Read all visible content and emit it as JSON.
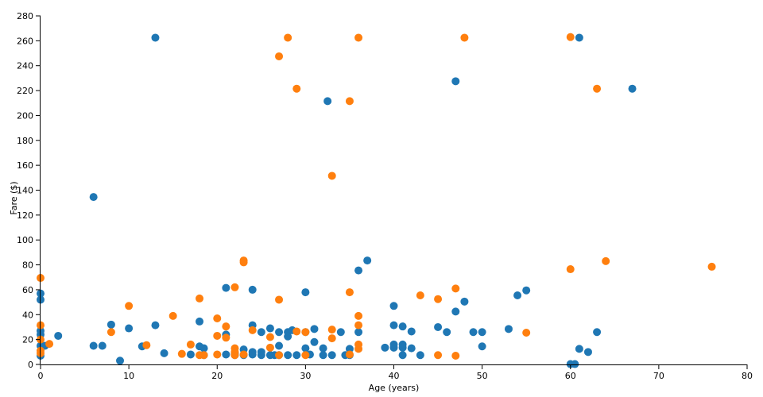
{
  "chart_data": {
    "type": "scatter",
    "title": "",
    "xlabel": "Age (years)",
    "ylabel": "Fare ($)",
    "xlim": [
      0,
      80
    ],
    "ylim": [
      0,
      280
    ],
    "x_ticks": [
      0,
      10,
      20,
      30,
      40,
      50,
      60,
      70,
      80
    ],
    "y_ticks": [
      0,
      20,
      40,
      60,
      80,
      100,
      120,
      140,
      160,
      180,
      200,
      220,
      240,
      260,
      280
    ],
    "grid": false,
    "legend": "none",
    "series": [
      {
        "color": "#1f77b4",
        "points": [
          [
            0,
            7
          ],
          [
            0,
            15
          ],
          [
            0,
            24
          ],
          [
            0,
            27
          ],
          [
            0,
            52
          ],
          [
            0,
            57
          ],
          [
            0.5,
            15
          ],
          [
            2,
            23
          ],
          [
            6,
            15
          ],
          [
            6,
            134.5
          ],
          [
            7,
            15
          ],
          [
            8,
            32
          ],
          [
            9,
            3
          ],
          [
            10,
            29
          ],
          [
            11.5,
            14.5
          ],
          [
            13,
            31.5
          ],
          [
            13,
            262.5
          ],
          [
            14,
            9
          ],
          [
            17,
            8
          ],
          [
            18,
            14.5
          ],
          [
            18,
            34.5
          ],
          [
            18.5,
            13
          ],
          [
            18.5,
            7.5
          ],
          [
            21,
            24
          ],
          [
            21,
            61.5
          ],
          [
            21,
            8
          ],
          [
            22,
            9
          ],
          [
            22,
            7.5
          ],
          [
            23,
            12
          ],
          [
            23,
            7.5
          ],
          [
            24,
            10
          ],
          [
            24,
            8
          ],
          [
            24,
            31.5
          ],
          [
            24,
            60
          ],
          [
            25,
            26
          ],
          [
            25,
            10
          ],
          [
            25,
            7.5
          ],
          [
            26,
            29
          ],
          [
            26,
            7.5
          ],
          [
            26.5,
            7.5
          ],
          [
            27,
            15
          ],
          [
            27,
            26
          ],
          [
            27,
            7.5
          ],
          [
            28,
            26
          ],
          [
            28,
            7.5
          ],
          [
            28,
            22.5
          ],
          [
            28.5,
            27.5
          ],
          [
            29,
            7.5
          ],
          [
            30,
            13
          ],
          [
            30,
            26
          ],
          [
            30,
            58
          ],
          [
            30.5,
            8
          ],
          [
            31,
            18
          ],
          [
            31,
            28.5
          ],
          [
            32,
            13
          ],
          [
            32,
            7.5
          ],
          [
            32.5,
            211.5
          ],
          [
            33,
            7.5
          ],
          [
            34,
            26
          ],
          [
            34.5,
            7.5
          ],
          [
            35,
            12.5
          ],
          [
            35,
            7.5
          ],
          [
            36,
            26
          ],
          [
            36,
            75.5
          ],
          [
            37,
            83.5
          ],
          [
            39,
            13.5
          ],
          [
            40,
            13.5
          ],
          [
            40,
            16
          ],
          [
            40,
            31.5
          ],
          [
            40,
            47
          ],
          [
            41,
            30.5
          ],
          [
            41,
            13.5
          ],
          [
            41,
            16
          ],
          [
            41,
            7.5
          ],
          [
            42,
            13
          ],
          [
            42,
            26.5
          ],
          [
            43,
            7.5
          ],
          [
            45,
            30
          ],
          [
            46,
            26
          ],
          [
            47,
            42.5
          ],
          [
            47,
            227.5
          ],
          [
            48,
            50.5
          ],
          [
            49,
            26
          ],
          [
            50,
            14.5
          ],
          [
            50,
            26
          ],
          [
            53,
            28.5
          ],
          [
            54,
            55.5
          ],
          [
            55,
            59.5
          ],
          [
            60,
            0.3
          ],
          [
            60.5,
            0.3
          ],
          [
            61,
            12.5
          ],
          [
            61,
            262.5
          ],
          [
            62,
            10
          ],
          [
            63,
            26
          ],
          [
            67,
            221.5
          ]
        ]
      },
      {
        "color": "#ff7f0e",
        "points": [
          [
            0,
            9
          ],
          [
            0,
            11
          ],
          [
            0,
            20
          ],
          [
            0,
            31.5
          ],
          [
            0,
            69.5
          ],
          [
            1,
            16.5
          ],
          [
            8,
            26
          ],
          [
            10,
            47
          ],
          [
            12,
            15.5
          ],
          [
            15,
            39
          ],
          [
            16,
            8.5
          ],
          [
            17,
            16
          ],
          [
            18,
            7.5
          ],
          [
            18,
            53
          ],
          [
            18.5,
            7.5
          ],
          [
            20,
            8
          ],
          [
            20,
            23
          ],
          [
            20,
            37
          ],
          [
            21,
            21.5
          ],
          [
            21,
            30.5
          ],
          [
            22,
            10
          ],
          [
            22,
            7.5
          ],
          [
            22,
            13
          ],
          [
            22,
            62
          ],
          [
            23,
            8
          ],
          [
            23,
            82
          ],
          [
            23,
            83.5
          ],
          [
            24,
            27.5
          ],
          [
            26,
            13.5
          ],
          [
            26,
            22
          ],
          [
            27,
            7.5
          ],
          [
            27,
            52
          ],
          [
            27,
            247.5
          ],
          [
            28,
            262.5
          ],
          [
            29,
            26.5
          ],
          [
            29,
            221.5
          ],
          [
            30,
            7.5
          ],
          [
            30,
            26
          ],
          [
            33,
            21
          ],
          [
            33,
            28
          ],
          [
            33,
            151.5
          ],
          [
            35,
            8
          ],
          [
            35,
            58
          ],
          [
            35,
            211.5
          ],
          [
            36,
            12.5
          ],
          [
            36,
            16
          ],
          [
            36,
            31.5
          ],
          [
            36,
            39
          ],
          [
            36,
            262.5
          ],
          [
            43,
            55.5
          ],
          [
            45,
            7.5
          ],
          [
            45,
            52.5
          ],
          [
            47,
            7
          ],
          [
            47,
            61
          ],
          [
            48,
            262.5
          ],
          [
            55,
            25.5
          ],
          [
            60,
            76.5
          ],
          [
            60,
            263
          ],
          [
            63,
            221.5
          ],
          [
            64,
            83
          ],
          [
            76,
            78.5
          ]
        ]
      }
    ]
  }
}
